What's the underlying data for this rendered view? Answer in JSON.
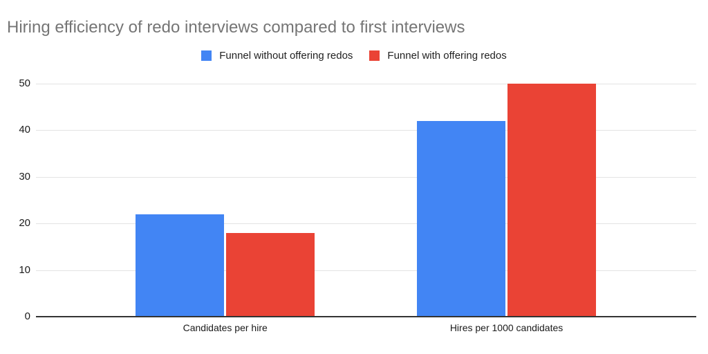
{
  "title": "Hiring efficiency of redo interviews compared to first interviews",
  "legend": {
    "items": [
      {
        "label": "Funnel without offering redos",
        "color": "#4285F4"
      },
      {
        "label": "Funnel with offering redos",
        "color": "#EA4335"
      }
    ]
  },
  "chart_data": {
    "type": "bar",
    "title": "Hiring efficiency of redo interviews compared to first interviews",
    "categories": [
      "Candidates per hire",
      "Hires per 1000 candidates"
    ],
    "series": [
      {
        "name": "Funnel without offering redos",
        "color": "#4285F4",
        "values": [
          22,
          42
        ]
      },
      {
        "name": "Funnel with offering redos",
        "color": "#EA4335",
        "values": [
          18,
          50
        ]
      }
    ],
    "xlabel": "",
    "ylabel": "",
    "ylim": [
      0,
      50
    ],
    "yticks": [
      0,
      10,
      20,
      30,
      40,
      50
    ],
    "grid": true,
    "legend_position": "top",
    "colors": {
      "title_text": "#757575",
      "axis_text": "#1a1a1a",
      "gridline": "#e3e3e3",
      "baseline": "#333333",
      "background": "#ffffff"
    }
  }
}
